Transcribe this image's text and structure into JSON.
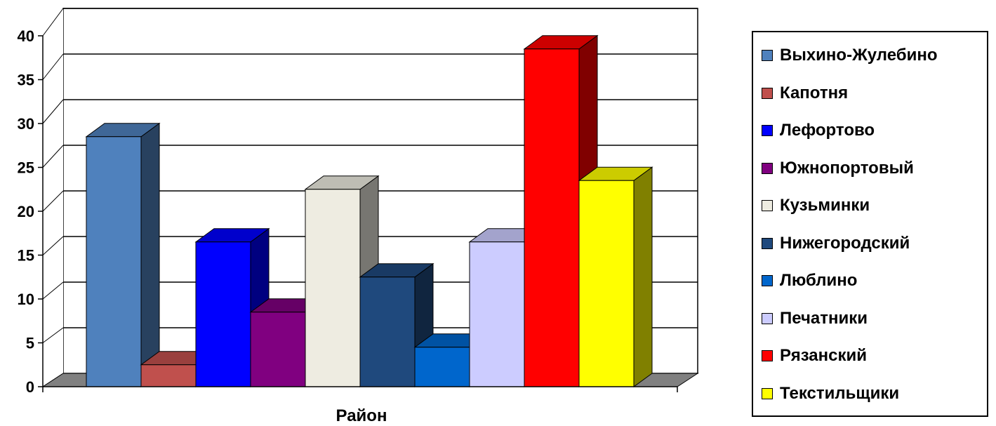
{
  "chart_data": {
    "type": "bar",
    "title": "",
    "xlabel": "Район",
    "ylabel": "",
    "ylim": [
      0,
      40
    ],
    "yticks": [
      0,
      5,
      10,
      15,
      20,
      25,
      30,
      35,
      40
    ],
    "grid": true,
    "legend_position": "right",
    "series": [
      {
        "name": "Выхино-Жулебино",
        "value": 28.5,
        "color": "#4F81BD"
      },
      {
        "name": "Капотня",
        "value": 2.5,
        "color": "#C0504D"
      },
      {
        "name": "Лефортово",
        "value": 16.5,
        "color": "#0000FF"
      },
      {
        "name": "Южнопортовый",
        "value": 8.5,
        "color": "#800080"
      },
      {
        "name": "Кузьминки",
        "value": 22.5,
        "color": "#EEECE1"
      },
      {
        "name": "Нижегородский",
        "value": 12.5,
        "color": "#1F497D"
      },
      {
        "name": "Люблино",
        "value": 4.5,
        "color": "#0066CC"
      },
      {
        "name": "Печатники",
        "value": 16.5,
        "color": "#CCCCFF"
      },
      {
        "name": "Рязанский",
        "value": 38.5,
        "color": "#FF0000"
      },
      {
        "name": "Текстильщики",
        "value": 23.5,
        "color": "#FFFF00"
      }
    ]
  }
}
